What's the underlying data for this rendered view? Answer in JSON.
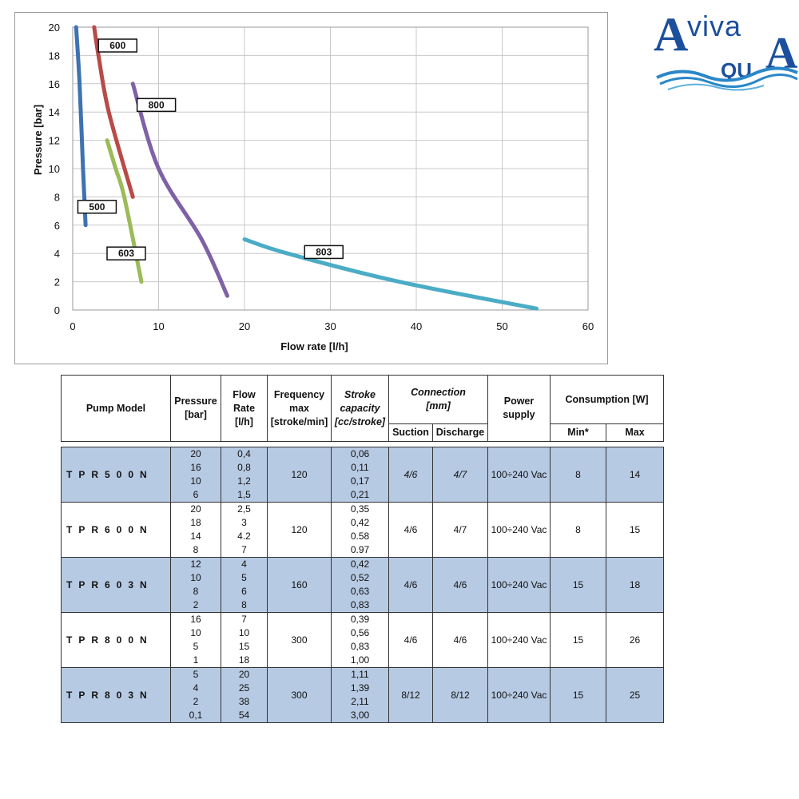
{
  "chart_data": {
    "type": "line",
    "xlabel": "Flow rate [l/h]",
    "ylabel": "Pressure [bar]",
    "xlim": [
      0,
      60
    ],
    "ylim": [
      0,
      20
    ],
    "xticks": [
      0,
      10,
      20,
      30,
      40,
      50,
      60
    ],
    "yticks": [
      0,
      2,
      4,
      6,
      8,
      10,
      12,
      14,
      16,
      18,
      20
    ],
    "grid": true,
    "legend": "inline labels",
    "series": [
      {
        "name": "500",
        "color": "#3f72b0",
        "points": [
          [
            0.4,
            20
          ],
          [
            0.8,
            16
          ],
          [
            1.2,
            10
          ],
          [
            1.5,
            6
          ]
        ]
      },
      {
        "name": "600",
        "color": "#b94a48",
        "points": [
          [
            2.5,
            20
          ],
          [
            3,
            18
          ],
          [
            4.2,
            14
          ],
          [
            7,
            8
          ]
        ]
      },
      {
        "name": "603",
        "color": "#9bbb59",
        "points": [
          [
            4,
            12
          ],
          [
            5,
            10
          ],
          [
            6,
            8
          ],
          [
            8,
            2
          ]
        ]
      },
      {
        "name": "800",
        "color": "#7f62a6",
        "points": [
          [
            7,
            16
          ],
          [
            10,
            10
          ],
          [
            15,
            5
          ],
          [
            18,
            1
          ]
        ]
      },
      {
        "name": "803",
        "color": "#4bacc6",
        "points": [
          [
            20,
            5
          ],
          [
            25,
            4
          ],
          [
            38,
            2
          ],
          [
            54,
            0.1
          ]
        ]
      }
    ]
  },
  "logo": {
    "text_top": "Aviva",
    "text_bottom": "QU"
  },
  "table": {
    "headers": {
      "model": "Pump Model",
      "pressure": [
        "Pressure",
        "[bar]"
      ],
      "flow": [
        "Flow",
        "Rate",
        "[l/h]"
      ],
      "frequency": [
        "Frequency",
        "max",
        "[stroke/min]"
      ],
      "stroke": [
        "Stroke",
        "capacity",
        "[cc/stroke]"
      ],
      "connection": [
        "Connection",
        "[mm]"
      ],
      "suction": "Suction",
      "discharge": "Discharge",
      "power": [
        "Power",
        "supply"
      ],
      "consumption": "Consumption [W]",
      "min": "Min*",
      "max": "Max"
    },
    "rows": [
      {
        "model": "TPR500N",
        "pressure": [
          "20",
          "16",
          "10",
          "6"
        ],
        "flow": [
          "0,4",
          "0,8",
          "1,2",
          "1,5"
        ],
        "frequency": "120",
        "stroke": [
          "0,06",
          "0,11",
          "0,17",
          "0,21"
        ],
        "suction": "4/6",
        "discharge": "4/7",
        "power": "100÷240 Vac",
        "min": "8",
        "max": "14"
      },
      {
        "model": "TPR600N",
        "pressure": [
          "20",
          "18",
          "14",
          "8"
        ],
        "flow": [
          "2,5",
          "3",
          "4.2",
          "7"
        ],
        "frequency": "120",
        "stroke": [
          "0,35",
          "0,42",
          "0.58",
          "0.97"
        ],
        "suction": "4/6",
        "discharge": "4/7",
        "power": "100÷240 Vac",
        "min": "8",
        "max": "15"
      },
      {
        "model": "TPR603N",
        "pressure": [
          "12",
          "10",
          "8",
          "2"
        ],
        "flow": [
          "4",
          "5",
          "6",
          "8"
        ],
        "frequency": "160",
        "stroke": [
          "0,42",
          "0,52",
          "0,63",
          "0,83"
        ],
        "suction": "4/6",
        "discharge": "4/6",
        "power": "100÷240 Vac",
        "min": "15",
        "max": "18"
      },
      {
        "model": "TPR800N",
        "pressure": [
          "16",
          "10",
          "5",
          "1"
        ],
        "flow": [
          "7",
          "10",
          "15",
          "18"
        ],
        "frequency": "300",
        "stroke": [
          "0,39",
          "0,56",
          "0,83",
          "1,00"
        ],
        "suction": "4/6",
        "discharge": "4/6",
        "power": "100÷240 Vac",
        "min": "15",
        "max": "26"
      },
      {
        "model": "TPR803N",
        "pressure": [
          "5",
          "4",
          "2",
          "0,1"
        ],
        "flow": [
          "20",
          "25",
          "38",
          "54"
        ],
        "frequency": "300",
        "stroke": [
          "1,11",
          "1,39",
          "2,11",
          "3,00"
        ],
        "suction": "8/12",
        "discharge": "8/12",
        "power": "100÷240 Vac",
        "min": "15",
        "max": "25"
      }
    ]
  }
}
